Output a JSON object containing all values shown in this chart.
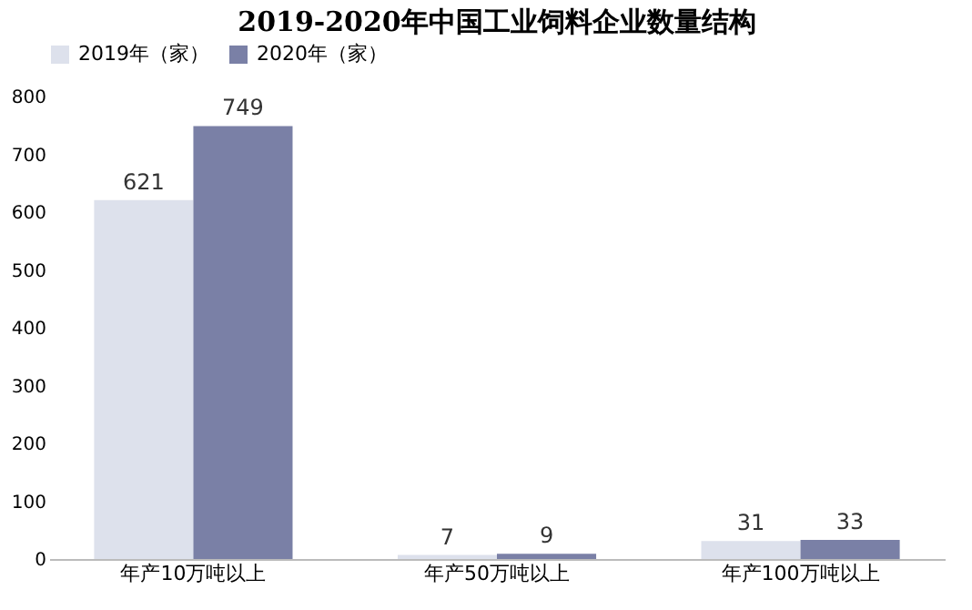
{
  "chart_data": {
    "type": "bar",
    "title": "2019-2020年中国工业饲料企业数量结构",
    "categories": [
      "年产10万吨以上",
      "年产50万吨以上",
      "年产100万吨以上"
    ],
    "series": [
      {
        "name": "2019年（家）",
        "color": "#dde1ec",
        "values": [
          621,
          7,
          31
        ]
      },
      {
        "name": "2020年（家）",
        "color": "#7a80a6",
        "values": [
          749,
          9,
          33
        ]
      }
    ],
    "ylim": [
      0,
      800
    ],
    "yticks": [
      0,
      100,
      200,
      300,
      400,
      500,
      600,
      700,
      800
    ],
    "grid": false,
    "legend": "top",
    "data_labels": true
  }
}
